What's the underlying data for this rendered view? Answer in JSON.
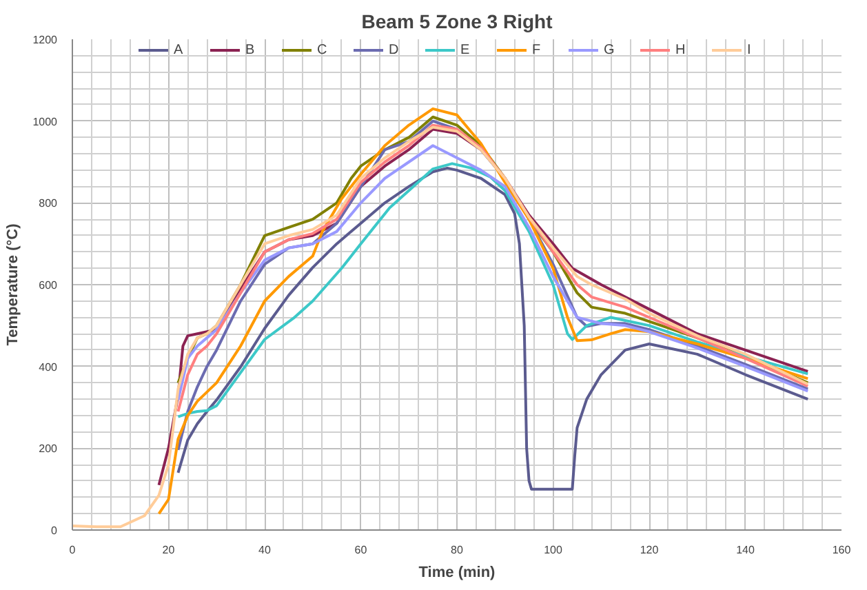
{
  "chart_data": {
    "type": "line",
    "title": "Beam 5 Zone 3 Right",
    "xlabel": "Time (min)",
    "ylabel": "Temperature (°C)",
    "xlim": [
      0,
      160
    ],
    "ylim": [
      0,
      1200
    ],
    "xticks": [
      0,
      20,
      40,
      60,
      80,
      100,
      120,
      140,
      160
    ],
    "yticks": [
      0,
      200,
      400,
      600,
      800,
      1000,
      1200
    ],
    "grid": true,
    "legend": "top",
    "marker": "none",
    "line_style": "solid",
    "series": [
      {
        "name": "A",
        "color": "#5b5b8f",
        "x": [
          22,
          24,
          26,
          28,
          30,
          35,
          40,
          45,
          50,
          55,
          60,
          65,
          70,
          75,
          78,
          80,
          85,
          90,
          92,
          93,
          94,
          94.5,
          95,
          95.5,
          104,
          104.5,
          105,
          107,
          110,
          115,
          120,
          130,
          140,
          153
        ],
        "values": [
          140,
          220,
          260,
          290,
          318,
          399,
          493,
          574,
          642,
          700,
          750,
          800,
          840,
          876,
          885,
          880,
          860,
          820,
          774,
          700,
          500,
          200,
          120,
          100,
          100,
          180,
          250,
          320,
          380,
          440,
          455,
          430,
          380,
          320
        ]
      },
      {
        "name": "B",
        "color": "#8b2252",
        "x": [
          18,
          20,
          22,
          23,
          24,
          26,
          28,
          30,
          35,
          40,
          45,
          50,
          55,
          60,
          65,
          70,
          75,
          80,
          85,
          90,
          95,
          100,
          104,
          110,
          115,
          120,
          130,
          140,
          153
        ],
        "values": [
          110,
          200,
          330,
          450,
          475,
          480,
          485,
          490,
          590,
          680,
          710,
          720,
          750,
          840,
          890,
          930,
          980,
          970,
          930,
          860,
          770,
          700,
          640,
          600,
          570,
          540,
          480,
          440,
          388
        ]
      },
      {
        "name": "C",
        "color": "#808000",
        "x": [
          22,
          24,
          26,
          28,
          30,
          35,
          40,
          45,
          50,
          55,
          58,
          60,
          65,
          70,
          75,
          80,
          85,
          90,
          95,
          100,
          105,
          108,
          115,
          120,
          130,
          140,
          153
        ],
        "values": [
          360,
          420,
          470,
          480,
          500,
          600,
          720,
          740,
          760,
          800,
          860,
          890,
          930,
          960,
          1010,
          990,
          940,
          860,
          760,
          680,
          580,
          545,
          530,
          510,
          470,
          425,
          360
        ]
      },
      {
        "name": "D",
        "color": "#6b6bb0",
        "x": [
          22,
          24,
          26,
          28,
          30,
          35,
          40,
          45,
          50,
          55,
          60,
          65,
          70,
          75,
          80,
          85,
          90,
          95,
          100,
          105,
          107,
          110,
          115,
          120,
          130,
          140,
          153
        ],
        "values": [
          196,
          290,
          350,
          400,
          440,
          560,
          650,
          690,
          700,
          750,
          840,
          930,
          950,
          1000,
          980,
          930,
          860,
          760,
          650,
          520,
          498,
          505,
          505,
          490,
          450,
          405,
          345
        ]
      },
      {
        "name": "E",
        "color": "#3cc8c8",
        "x": [
          22,
          24,
          26,
          28,
          30,
          35,
          40,
          46,
          50,
          56,
          60,
          66,
          70,
          75,
          79,
          83,
          87,
          90,
          95,
          100,
          103,
          104,
          107,
          112,
          120,
          130,
          140,
          153
        ],
        "values": [
          277,
          285,
          290,
          292,
          304,
          385,
          466,
          518,
          560,
          640,
          700,
          788,
          830,
          883,
          896,
          885,
          863,
          830,
          730,
          600,
          480,
          466,
          500,
          520,
          500,
          460,
          425,
          382
        ]
      },
      {
        "name": "F",
        "color": "#ff9900",
        "x": [
          18,
          20,
          22,
          24,
          26,
          30,
          35,
          40,
          45,
          50,
          52,
          56,
          60,
          65,
          70,
          75,
          80,
          85,
          90,
          95,
          100,
          103,
          105,
          108,
          112,
          115,
          120,
          130,
          140,
          153
        ],
        "values": [
          40,
          75,
          223,
          280,
          315,
          360,
          450,
          560,
          620,
          670,
          730,
          810,
          870,
          940,
          990,
          1030,
          1015,
          945,
          850,
          760,
          640,
          520,
          463,
          465,
          480,
          490,
          485,
          455,
          420,
          370
        ]
      },
      {
        "name": "G",
        "color": "#9999ff",
        "x": [
          22,
          24,
          26,
          28,
          30,
          35,
          40,
          45,
          50,
          55,
          60,
          65,
          70,
          75,
          80,
          85,
          90,
          95,
          100,
          105,
          110,
          115,
          120,
          130,
          140,
          153
        ],
        "values": [
          318,
          420,
          450,
          470,
          490,
          580,
          660,
          690,
          700,
          730,
          800,
          860,
          900,
          940,
          910,
          880,
          840,
          740,
          620,
          520,
          505,
          500,
          485,
          445,
          400,
          340
        ]
      },
      {
        "name": "H",
        "color": "#ff7f7f",
        "x": [
          22,
          24,
          26,
          28,
          30,
          35,
          40,
          45,
          50,
          55,
          60,
          65,
          70,
          75,
          80,
          85,
          90,
          95,
          100,
          105,
          108,
          115,
          120,
          130,
          140,
          153
        ],
        "values": [
          290,
          380,
          430,
          450,
          480,
          580,
          680,
          710,
          725,
          760,
          850,
          900,
          940,
          990,
          980,
          935,
          860,
          765,
          680,
          600,
          570,
          545,
          520,
          470,
          420,
          352
        ]
      },
      {
        "name": "I",
        "color": "#ffcc99",
        "x": [
          0,
          5,
          10,
          15,
          18,
          20,
          22,
          24,
          26,
          28,
          30,
          35,
          40,
          45,
          50,
          55,
          60,
          65,
          70,
          75,
          80,
          85,
          90,
          95,
          100,
          105,
          108,
          115,
          120,
          130,
          140,
          153
        ],
        "values": [
          10,
          8,
          8,
          35,
          85,
          160,
          345,
          430,
          470,
          480,
          500,
          600,
          700,
          720,
          735,
          770,
          860,
          910,
          950,
          985,
          975,
          930,
          860,
          765,
          690,
          620,
          600,
          565,
          530,
          475,
          430,
          357
        ]
      }
    ]
  }
}
